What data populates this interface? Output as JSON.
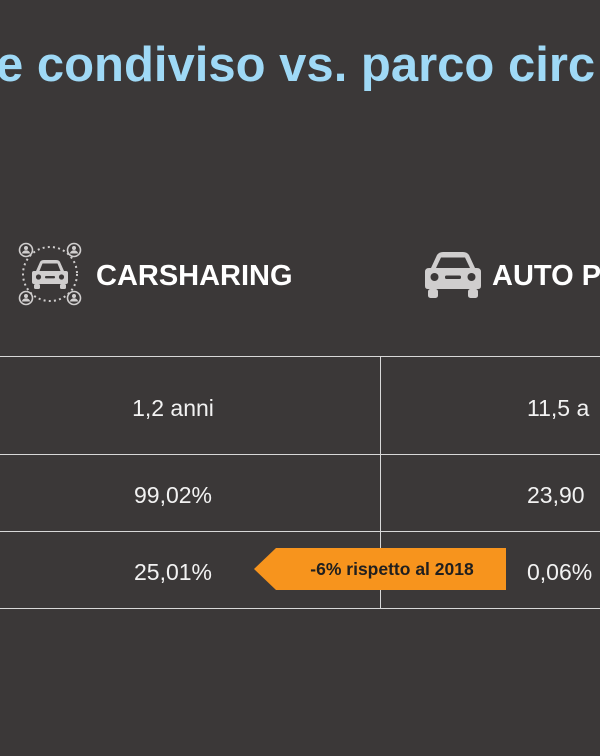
{
  "title": "e condiviso vs. parco circ",
  "columns": {
    "carsharing": {
      "label": "CARSHARING",
      "icon": "carsharing-network-icon"
    },
    "auto": {
      "label": "AUTO P",
      "icon": "car-icon"
    }
  },
  "rows": [
    {
      "carsharing": "1,2 anni",
      "auto": "11,5 a"
    },
    {
      "carsharing": "99,02%",
      "auto": "23,90"
    },
    {
      "carsharing": "25,01%",
      "auto": "0,06%"
    }
  ],
  "callout": {
    "text": "-6% rispetto al 2018",
    "color": "#f7941d"
  },
  "colors": {
    "background": "#3b3838",
    "title": "#9fd9f6",
    "icon": "#d0cece",
    "lines": "#d8d8d8"
  }
}
